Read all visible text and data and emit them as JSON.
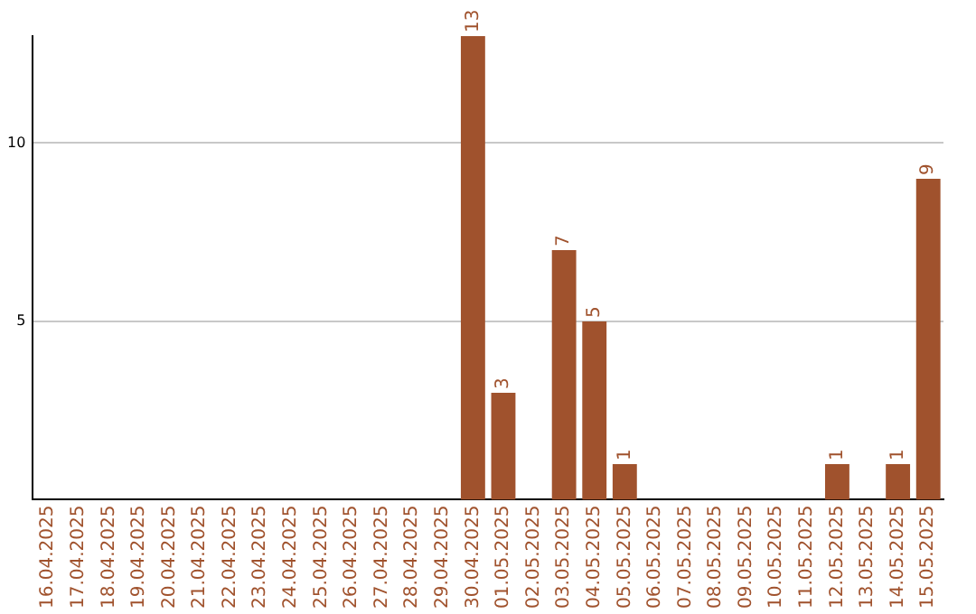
{
  "chart_data": {
    "type": "bar",
    "categories": [
      "16.04.2025",
      "17.04.2025",
      "18.04.2025",
      "19.04.2025",
      "20.04.2025",
      "21.04.2025",
      "22.04.2025",
      "23.04.2025",
      "24.04.2025",
      "25.04.2025",
      "26.04.2025",
      "27.04.2025",
      "28.04.2025",
      "29.04.2025",
      "30.04.2025",
      "01.05.2025",
      "02.05.2025",
      "03.05.2025",
      "04.05.2025",
      "05.05.2025",
      "06.05.2025",
      "07.05.2025",
      "08.05.2025",
      "09.05.2025",
      "10.05.2025",
      "11.05.2025",
      "12.05.2025",
      "13.05.2025",
      "14.05.2025",
      "15.05.2025"
    ],
    "values": [
      0,
      0,
      0,
      0,
      0,
      0,
      0,
      0,
      0,
      0,
      0,
      0,
      0,
      0,
      13,
      3,
      0,
      7,
      5,
      1,
      0,
      0,
      0,
      0,
      0,
      0,
      1,
      0,
      1,
      9
    ],
    "value_labels": [
      null,
      null,
      null,
      null,
      null,
      null,
      null,
      null,
      null,
      null,
      null,
      null,
      null,
      null,
      "13",
      "3",
      null,
      "7",
      "5",
      "1",
      null,
      null,
      null,
      null,
      null,
      null,
      "1",
      null,
      "1",
      "9"
    ],
    "color": "#a0522d",
    "ylim": [
      0,
      13
    ],
    "yticks": [
      5,
      10
    ],
    "grid": "y",
    "legend": false
  }
}
